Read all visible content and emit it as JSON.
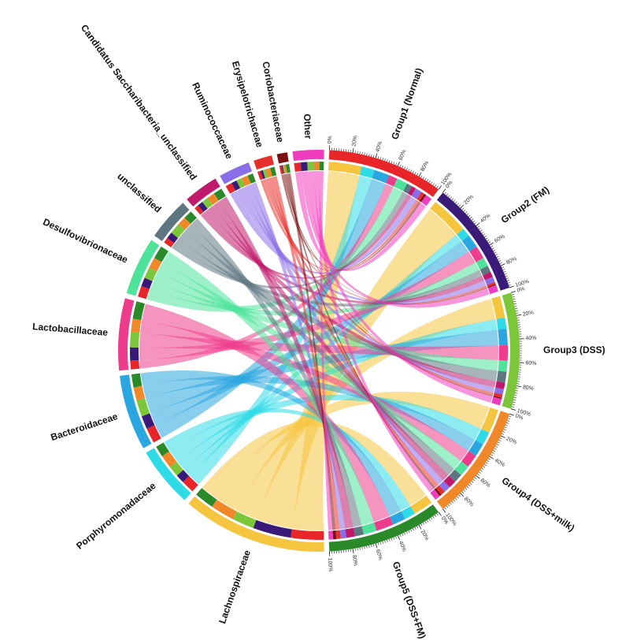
{
  "chart_data": {
    "type": "chord",
    "groups": [
      {
        "name": "Group1 (Normal)",
        "color": "#e8262a"
      },
      {
        "name": "Group2 (FM)",
        "color": "#3a1a78"
      },
      {
        "name": "Group3 (DSS)",
        "color": "#7cc63a"
      },
      {
        "name": "Group4 (DSS+milk)",
        "color": "#f0882a"
      },
      {
        "name": "Group5 (DSS+FM)",
        "color": "#2a8a2a"
      }
    ],
    "taxa": [
      {
        "name": "Lachnospiraceae",
        "color": "#f5c53f"
      },
      {
        "name": "Porphyromonadaceae",
        "color": "#30dbe8"
      },
      {
        "name": "Bacteroidaceae",
        "color": "#2aa6e0"
      },
      {
        "name": "Lactobacillaceae",
        "color": "#ee3c8c"
      },
      {
        "name": "Desulfovibrionaceae",
        "color": "#4de39a"
      },
      {
        "name": "unclassified",
        "color": "#5e7682"
      },
      {
        "name": "Candidatus Saccharibacteria_unclassified",
        "color": "#c0186a"
      },
      {
        "name": "Ruminococcaceae",
        "color": "#8a6de8"
      },
      {
        "name": "Erysipelotrichaceae",
        "color": "#e8302a"
      },
      {
        "name": "Coriobacteriaceae",
        "color": "#7a1010"
      },
      {
        "name": "Other",
        "color": "#f03cc0"
      }
    ],
    "matrix": [
      [
        30,
        35,
        20,
        22,
        18
      ],
      [
        12,
        8,
        10,
        12,
        10
      ],
      [
        14,
        12,
        15,
        12,
        12
      ],
      [
        8,
        12,
        14,
        12,
        16
      ],
      [
        10,
        8,
        10,
        10,
        12
      ],
      [
        5,
        6,
        10,
        8,
        8
      ],
      [
        4,
        5,
        6,
        7,
        8
      ],
      [
        6,
        5,
        5,
        6,
        5
      ],
      [
        3,
        2,
        3,
        4,
        4
      ],
      [
        2,
        1,
        1,
        2,
        3
      ],
      [
        6,
        6,
        6,
        5,
        4
      ]
    ],
    "axis_ticks": [
      {
        "value": 0,
        "label": "0%"
      },
      {
        "value": 20,
        "label": "20%"
      },
      {
        "value": 40,
        "label": "40%"
      },
      {
        "value": 60,
        "label": "60%"
      },
      {
        "value": 80,
        "label": "80%"
      },
      {
        "value": 100,
        "label": "100%"
      }
    ]
  }
}
